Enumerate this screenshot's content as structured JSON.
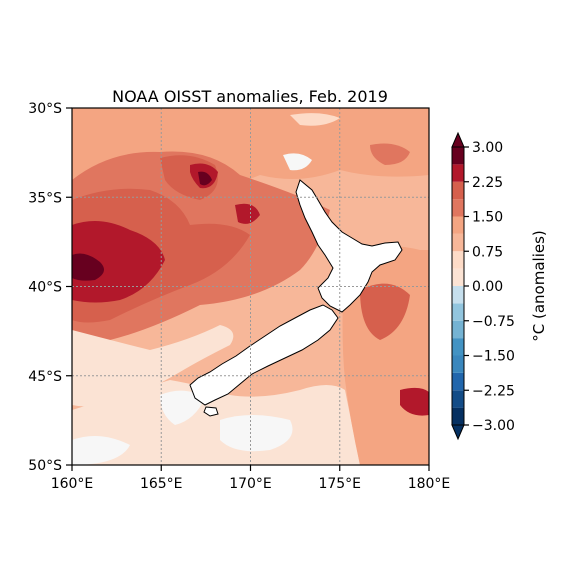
{
  "title": "NOAA OISST anomalies, Feb. 2019",
  "map": {
    "lon_range": [
      160,
      180
    ],
    "lat_range": [
      -50,
      -30
    ],
    "lon_ticks": [
      {
        "value": 160,
        "label": "160°E"
      },
      {
        "value": 165,
        "label": "165°E"
      },
      {
        "value": 170,
        "label": "170°E"
      },
      {
        "value": 175,
        "label": "175°E"
      },
      {
        "value": 180,
        "label": "180°E"
      }
    ],
    "lat_ticks": [
      {
        "value": -30,
        "label": "30°S"
      },
      {
        "value": -35,
        "label": "35°S"
      },
      {
        "value": -40,
        "label": "40°S"
      },
      {
        "value": -45,
        "label": "45°S"
      },
      {
        "value": -50,
        "label": "50°S"
      }
    ],
    "gridlines": true,
    "gridline_style": "dotted",
    "land_color": "#ffffff",
    "coastline_color": "#000000"
  },
  "colorbar": {
    "label": "°C (anomalies)",
    "range": [
      -3,
      3
    ],
    "extend": "both",
    "cmap": "RdBu_r",
    "ticks": [
      {
        "value": 3.0,
        "label": "3.00"
      },
      {
        "value": 2.25,
        "label": "2.25"
      },
      {
        "value": 1.5,
        "label": "1.50"
      },
      {
        "value": 0.75,
        "label": "0.75"
      },
      {
        "value": 0.0,
        "label": "0.00"
      },
      {
        "value": -0.75,
        "label": "−0.75"
      },
      {
        "value": -1.5,
        "label": "−1.50"
      },
      {
        "value": -2.25,
        "label": "−2.25"
      },
      {
        "value": -3.0,
        "label": "−3.00"
      }
    ],
    "levels": [
      {
        "value": -3.0,
        "color": "#053061"
      },
      {
        "value": -2.625,
        "color": "#134c87"
      },
      {
        "value": -2.25,
        "color": "#2166ac"
      },
      {
        "value": -1.875,
        "color": "#3a87bd"
      },
      {
        "value": -1.5,
        "color": "#4393c3"
      },
      {
        "value": -1.125,
        "color": "#75b3d3"
      },
      {
        "value": -0.75,
        "color": "#92c5de"
      },
      {
        "value": -0.375,
        "color": "#c6dfed"
      },
      {
        "value": 0.0,
        "color": "#f7f7f7"
      },
      {
        "value": 0.375,
        "color": "#fbe3d4"
      },
      {
        "value": 0.75,
        "color": "#fddbc7"
      },
      {
        "value": 1.125,
        "color": "#f7b799"
      },
      {
        "value": 1.5,
        "color": "#f4a582"
      },
      {
        "value": 1.875,
        "color": "#e0765f"
      },
      {
        "value": 2.25,
        "color": "#d6604d"
      },
      {
        "value": 2.625,
        "color": "#b2182b"
      },
      {
        "value": 3.0,
        "color": "#67001f"
      }
    ]
  }
}
